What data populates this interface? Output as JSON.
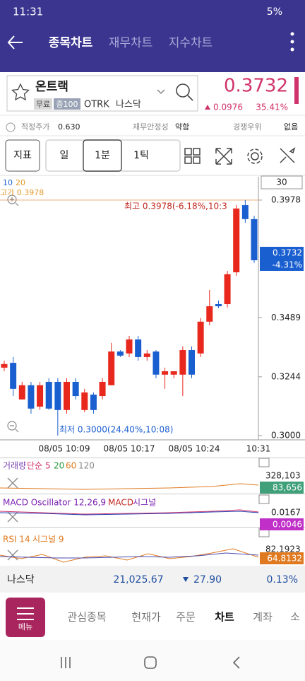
{
  "status_bar": {
    "time": "11:31",
    "battery": "5%"
  },
  "header": {
    "tabs": [
      "종목차트",
      "재무차트",
      "지수차트"
    ]
  },
  "stock": {
    "name": "온트랙",
    "tags": [
      "무료",
      "증100"
    ],
    "ticker": "OTRK",
    "market": "나스닥",
    "price": "0.3732",
    "change": "0.0976",
    "change_pct": "35.41%"
  },
  "info": [
    {
      "label": "적정주가",
      "value": "0.630"
    },
    {
      "label": "재무안정성",
      "value": "약함"
    },
    {
      "label": "경쟁우위",
      "value": "없음"
    }
  ],
  "toolbar": {
    "buttons": [
      "지표",
      "일",
      "1분",
      "1틱"
    ]
  },
  "chart": {
    "type": "candlestick",
    "legend": [
      "10",
      "20"
    ],
    "high_label": "고가 0.3978",
    "count": "30",
    "ylim": [
      0.2988,
      0.406
    ],
    "yticks": [
      0.3978,
      0.3489,
      0.3244,
      {
        "value": 0.3,
        "label": "0.3000"
      }
    ],
    "high_note": "최고 0.3978(-6.18%,10:3",
    "low_note": "최저 0.3000(24.40%,10:08)",
    "price_tag": "0.3732",
    "price_tag_pct": "-4.31%",
    "x_labels": [
      "08/05 10:09",
      "08/05 10:17",
      "08/05 10:24",
      "10:31"
    ],
    "candles": [
      [
        0.3282,
        0.3311,
        0.3267,
        0.3297
      ],
      [
        0.3302,
        0.3326,
        0.3164,
        0.3194
      ],
      [
        0.315,
        0.3223,
        0.315,
        0.3209
      ],
      [
        0.3209,
        0.3223,
        0.3091,
        0.3112
      ],
      [
        0.312,
        0.3223,
        0.3106,
        0.3209
      ],
      [
        0.3223,
        0.3238,
        0.3106,
        0.3112
      ],
      [
        0.3223,
        0.3238,
        0.3,
        0.3106
      ],
      [
        0.3106,
        0.3238,
        0.3091,
        0.3223
      ],
      [
        0.3223,
        0.3238,
        0.315,
        0.3164
      ],
      [
        0.3106,
        0.3194,
        0.3097,
        0.3179
      ],
      [
        0.317,
        0.3179,
        0.3091,
        0.3106
      ],
      [
        0.3164,
        0.3238,
        0.315,
        0.3223
      ],
      [
        0.3209,
        0.3385,
        0.3209,
        0.3349
      ],
      [
        0.3349,
        0.3355,
        0.3326,
        0.3332
      ],
      [
        0.3341,
        0.3414,
        0.3326,
        0.3399
      ],
      [
        0.3399,
        0.3414,
        0.3311,
        0.3326
      ],
      [
        0.3326,
        0.3355,
        0.3311,
        0.3341
      ],
      [
        0.3349,
        0.3355,
        0.3238,
        0.3253
      ],
      [
        0.3253,
        0.3282,
        0.3194,
        0.3267
      ],
      [
        0.3253,
        0.3267,
        0.3238,
        0.3267
      ],
      [
        0.3253,
        0.337,
        0.3164,
        0.3355
      ],
      [
        0.3355,
        0.337,
        0.3238,
        0.3253
      ],
      [
        0.3341,
        0.3488,
        0.3326,
        0.3473
      ],
      [
        0.3473,
        0.3605,
        0.3458,
        0.3537
      ],
      [
        0.3546,
        0.3561,
        0.3529,
        0.3537
      ],
      [
        0.3546,
        0.3684,
        0.3532,
        0.367
      ],
      [
        0.3678,
        0.3957,
        0.3664,
        0.3943
      ],
      [
        0.3957,
        0.3978,
        0.3884,
        0.3899
      ],
      [
        0.3899,
        0.3913,
        0.3717,
        0.3728
      ]
    ]
  },
  "volume": {
    "title": [
      "거래량",
      "단순",
      "5",
      "20",
      "60",
      "120"
    ],
    "max": "328,103",
    "current": "83,656"
  },
  "macd": {
    "title": [
      "MACD Oscillator 12,26,9",
      "MACD",
      "시그널"
    ],
    "max": "0.0167",
    "current": "0.0046"
  },
  "rsi": {
    "title": [
      "RSI 14",
      "시그널 9"
    ],
    "max": "82.1923",
    "current": "64.8132"
  },
  "index_bar": {
    "name": "나스닥",
    "value": "21,025.67",
    "change": "27.90",
    "change_pct": "0.13%"
  },
  "nav": {
    "menu": "메뉴",
    "items": [
      "관심종목",
      "현재가",
      "주문",
      "차트",
      "계좌",
      "소"
    ]
  }
}
